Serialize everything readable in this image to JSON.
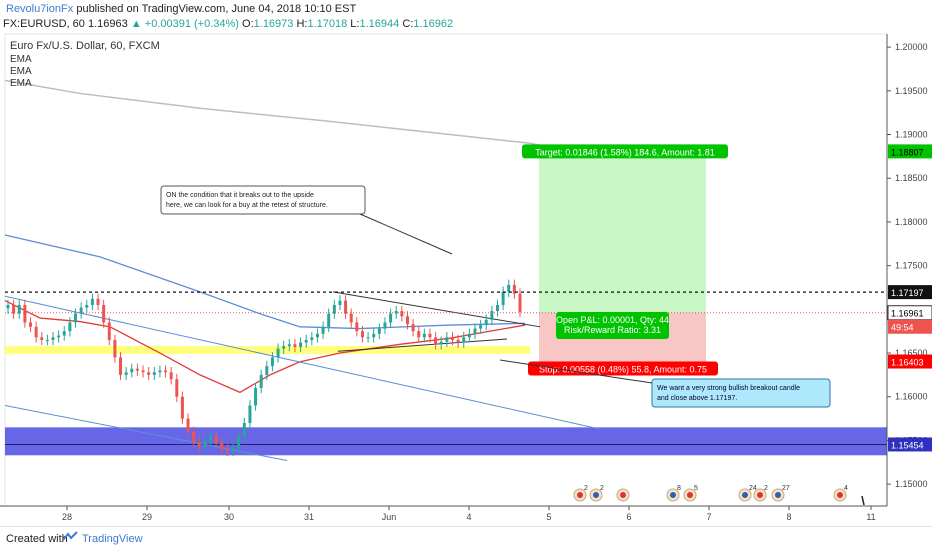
{
  "header": {
    "author": "Revolu7ionFx",
    "published": "published on TradingView.com, June 04, 2018 10:10 EST",
    "symbol": "FX:EURUSD, 60",
    "last": "1.16963",
    "change": "+0.00391 (+0.34%)",
    "o_label": "O:",
    "o": "1.16973",
    "h_label": "H:",
    "h": "1.17018",
    "l_label": "L:",
    "l": "1.16944",
    "c_label": "C:",
    "c": "1.16962"
  },
  "legend": {
    "title": "Euro Fx/U.S. Dollar, 60, FXCM",
    "ema1": "EMA",
    "ema2": "EMA",
    "ema3": "EMA"
  },
  "annotations": {
    "callout_top": [
      "ON the condition that it breaks out to the upside",
      "here, we can look for a buy at the retest of structure."
    ],
    "callout_bottom": [
      "We want a very strong bullish breakout candle",
      "and close above 1.17197."
    ],
    "target_label": "Target: 0.01846 (1.58%) 184.6, Amount: 1.81",
    "pnl_label": "Open P&L: 0.00001, Qty: 44",
    "rr_label": "Risk/Reward Ratio: 3.31",
    "stop_label": "Stop: 0.00558 (0.48%) 55.8, Amount: 0.75"
  },
  "price_tags": {
    "target": "1.18807",
    "resistance": "1.17197",
    "current": "1.16961",
    "countdown": "49:54",
    "stop": "1.16403",
    "support": "1.15454"
  },
  "event_markers": {
    "m1": "2",
    "m2": "2",
    "m3": "8",
    "m4": "5",
    "m5": "24",
    "m6": "2",
    "m7": "27",
    "m8": "4"
  },
  "footer": {
    "created": "Created with",
    "brand": "TradingView"
  },
  "colors": {
    "bull": "#26a69a",
    "bear": "#ef5350",
    "target_zone": "#c8f7c5",
    "stop_zone": "#f9c6c6",
    "support_zone": "#4040e0",
    "yellow_zone": "#ffff66",
    "ema_red": "#e53935",
    "ema_blue": "#5b8ed6",
    "ema_gray": "#bdbdbd",
    "tag_green": "#00c300",
    "tag_red": "#ff0000"
  },
  "chart_data": {
    "type": "candlestick",
    "symbol": "EURUSD",
    "interval": "60",
    "ylim": [
      1.1475,
      1.2015
    ],
    "y_ticks": [
      1.15,
      1.155,
      1.16,
      1.165,
      1.17,
      1.175,
      1.18,
      1.185,
      1.19,
      1.195,
      1.2
    ],
    "y_tick_labels": [
      "1.15000",
      "1.15500",
      "1.16000",
      "1.16500",
      "1.17000",
      "1.17500",
      "1.18000",
      "1.18500",
      "1.19000",
      "1.19500",
      "1.20000"
    ],
    "x_ticks": [
      "28",
      "29",
      "30",
      "31",
      "Jun",
      "4",
      "5",
      "6",
      "7",
      "8",
      "11"
    ],
    "levels": {
      "target": 1.18807,
      "resistance": 1.17197,
      "current": 1.16961,
      "stop": 1.16403,
      "support": 1.15454
    },
    "candles_close_path": [
      1.1705,
      1.1695,
      1.1705,
      1.1685,
      1.168,
      1.1668,
      1.1665,
      1.1665,
      1.1668,
      1.167,
      1.1675,
      1.1685,
      1.1695,
      1.1702,
      1.1705,
      1.1712,
      1.1705,
      1.1685,
      1.1665,
      1.1645,
      1.1625,
      1.1628,
      1.1632,
      1.163,
      1.1628,
      1.1625,
      1.1628,
      1.163,
      1.1628,
      1.162,
      1.16,
      1.1575,
      1.156,
      1.1548,
      1.1543,
      1.155,
      1.1555,
      1.1547,
      1.154,
      1.1538,
      1.1542,
      1.1555,
      1.157,
      1.159,
      1.161,
      1.1625,
      1.1635,
      1.1645,
      1.1655,
      1.1658,
      1.166,
      1.1657,
      1.1662,
      1.1665,
      1.1668,
      1.1672,
      1.168,
      1.1695,
      1.1705,
      1.171,
      1.1695,
      1.1685,
      1.1675,
      1.1668,
      1.1668,
      1.1672,
      1.1678,
      1.1685,
      1.1695,
      1.1698,
      1.1692,
      1.1683,
      1.1675,
      1.1668,
      1.1672,
      1.1668,
      1.166,
      1.1663,
      1.1668,
      1.1665,
      1.1662,
      1.1668,
      1.1672,
      1.1678,
      1.1682,
      1.1688,
      1.1698,
      1.1705,
      1.172,
      1.1728,
      1.1718,
      1.1697
    ]
  }
}
